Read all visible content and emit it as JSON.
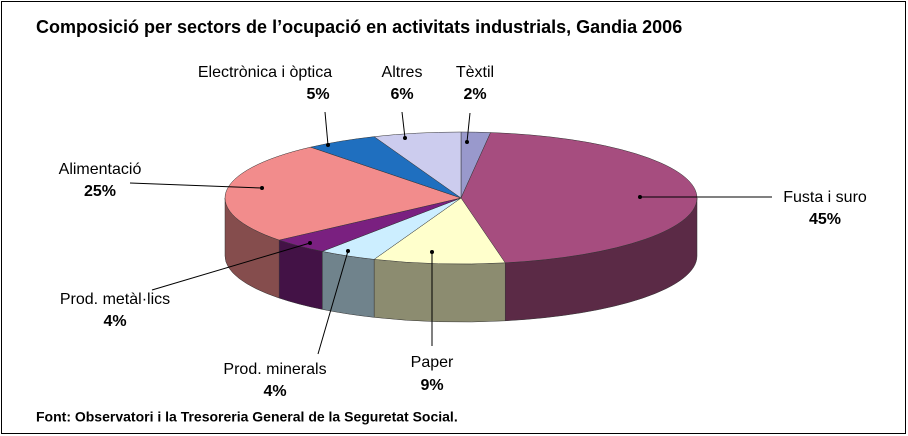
{
  "chart_data": {
    "type": "pie3d",
    "title": "Composició per sectors de l’ocupació en activitats industrials, Gandia 2006",
    "categories": [
      "Tèxtil",
      "Fusta i suro",
      "Paper",
      "Prod. minerals",
      "Prod. metàl·lics",
      "Alimentació",
      "Electrònica i òptica",
      "Altres"
    ],
    "values": [
      2,
      45,
      9,
      4,
      4,
      25,
      5,
      6
    ],
    "value_labels": [
      "2%",
      "45%",
      "9%",
      "4%",
      "4%",
      "25%",
      "5%",
      "6%"
    ],
    "colors": [
      "#9999cc",
      "#a64d7f",
      "#ffffcc",
      "#cceeff",
      "#7a2080",
      "#f28c8c",
      "#1f6fbf",
      "#ccccee"
    ],
    "source": "Font: Observatori i la Tresoreria General de la Seguretat Social."
  }
}
